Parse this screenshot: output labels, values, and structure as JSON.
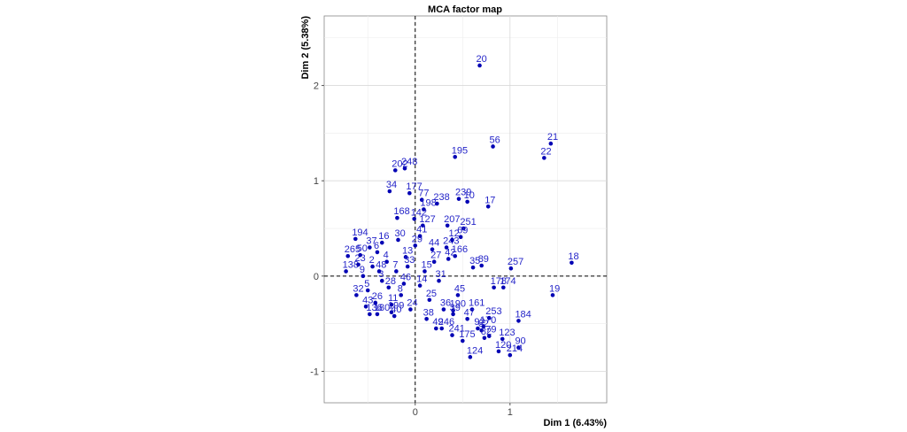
{
  "chart_data": {
    "type": "scatter",
    "title": "MCA factor map",
    "x_label": "Dim 1 (6.43%)",
    "y_label": "Dim 2 (5.38%)",
    "xlim": [
      -0.96,
      2.02
    ],
    "ylim": [
      -1.33,
      2.73
    ],
    "xticks": [
      0,
      1
    ],
    "yticks": [
      -1,
      0,
      1,
      2
    ],
    "x_minor_grid": [
      -0.5,
      0.5,
      1.5
    ],
    "y_minor_grid": [
      -0.5,
      0.5,
      1.5,
      2.5
    ],
    "color": "#0000b4",
    "label_color": "#2424c8",
    "grid": true,
    "labels": [
      "20",
      "21",
      "22",
      "56",
      "195",
      "18",
      "19",
      "257",
      "184",
      "90",
      "214",
      "120",
      "123",
      "124",
      "175",
      "241",
      "246",
      "17",
      "10",
      "239",
      "248",
      "202",
      "34",
      "177",
      "77",
      "168",
      "142",
      "207",
      "251",
      "69",
      "166",
      "89",
      "35",
      "194",
      "265",
      "138",
      "174",
      "178",
      "170",
      "253",
      "136",
      "180",
      "199",
      "127",
      "198",
      "238",
      "243",
      "12",
      "161",
      "190",
      "62",
      "92",
      "82",
      "79",
      "2",
      "3",
      "4",
      "5",
      "6",
      "7",
      "8",
      "9",
      "11",
      "13",
      "14",
      "15",
      "16",
      "23",
      "24",
      "25",
      "26",
      "27",
      "28",
      "29",
      "30",
      "31",
      "32",
      "33",
      "36",
      "37",
      "38",
      "39",
      "40",
      "41",
      "42",
      "43",
      "44",
      "45",
      "46",
      "47",
      "48",
      "49",
      "50"
    ],
    "x": [
      0.68,
      1.43,
      1.36,
      0.82,
      0.42,
      1.65,
      1.45,
      1.01,
      1.09,
      1.09,
      1.0,
      0.88,
      0.92,
      0.58,
      0.5,
      0.39,
      0.28,
      0.77,
      0.55,
      0.46,
      -0.11,
      -0.21,
      -0.27,
      -0.06,
      0.07,
      -0.19,
      -0.01,
      0.34,
      0.51,
      0.48,
      0.42,
      0.7,
      0.61,
      -0.63,
      -0.71,
      -0.73,
      0.93,
      0.83,
      0.72,
      0.78,
      -0.48,
      -0.4,
      -0.25,
      0.08,
      0.09,
      0.23,
      0.33,
      0.39,
      0.6,
      0.4,
      0.7,
      0.66,
      0.73,
      0.78,
      -0.45,
      -0.35,
      -0.3,
      -0.5,
      -0.4,
      -0.2,
      -0.15,
      -0.55,
      -0.25,
      -0.1,
      0.05,
      0.1,
      -0.35,
      -0.6,
      -0.05,
      0.15,
      -0.42,
      0.2,
      -0.28,
      0.0,
      -0.18,
      0.25,
      -0.62,
      -0.08,
      0.3,
      -0.48,
      0.12,
      0.4,
      -0.22,
      0.05,
      0.35,
      -0.52,
      0.18,
      0.45,
      -0.12,
      0.55,
      -0.38,
      0.22,
      -0.58
    ],
    "y": [
      2.21,
      1.39,
      1.24,
      1.36,
      1.25,
      0.14,
      -0.2,
      0.08,
      -0.47,
      -0.75,
      -0.83,
      -0.79,
      -0.66,
      -0.85,
      -0.68,
      -0.62,
      -0.55,
      0.73,
      0.78,
      0.81,
      1.13,
      1.11,
      0.89,
      0.87,
      0.8,
      0.61,
      0.6,
      0.53,
      0.5,
      0.41,
      0.21,
      0.11,
      0.09,
      0.39,
      0.21,
      0.05,
      -0.12,
      -0.12,
      -0.53,
      -0.44,
      -0.4,
      -0.4,
      -0.38,
      0.53,
      0.7,
      0.76,
      0.3,
      0.38,
      -0.35,
      -0.36,
      -0.57,
      -0.55,
      -0.65,
      -0.63,
      0.1,
      -0.05,
      0.15,
      -0.15,
      0.25,
      0.05,
      -0.2,
      0.0,
      -0.3,
      0.2,
      -0.1,
      0.05,
      0.35,
      0.12,
      -0.35,
      -0.25,
      -0.28,
      0.15,
      -0.12,
      0.32,
      0.38,
      -0.05,
      -0.2,
      0.1,
      -0.35,
      0.3,
      -0.45,
      -0.4,
      -0.42,
      0.42,
      0.18,
      -0.32,
      0.28,
      -0.2,
      -0.08,
      -0.45,
      0.05,
      -0.55,
      0.22
    ]
  }
}
